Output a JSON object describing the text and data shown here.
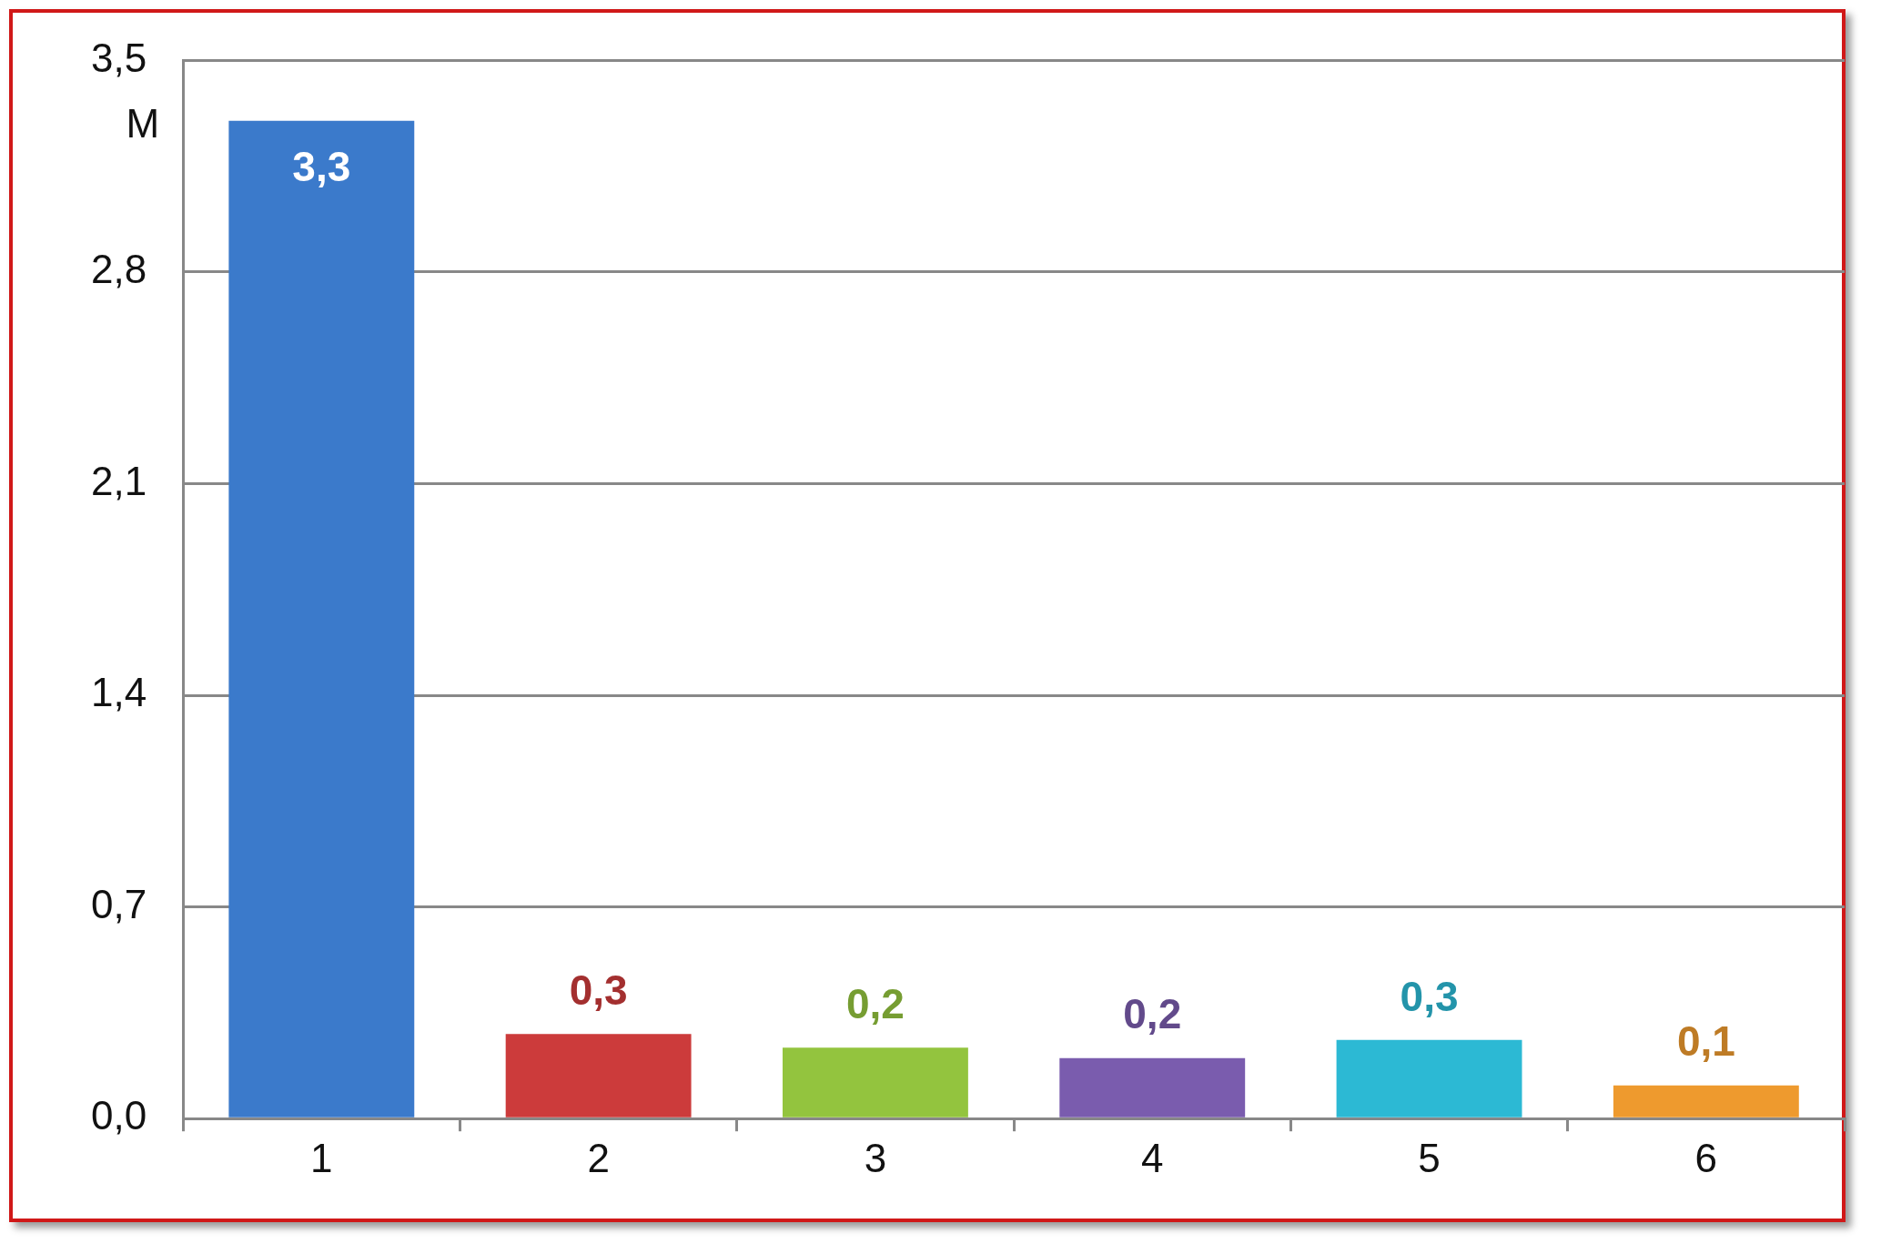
{
  "chart_data": {
    "type": "bar",
    "ylabel": "M",
    "categories": [
      "1",
      "2",
      "3",
      "4",
      "5",
      "6"
    ],
    "values": [
      3.3,
      0.28,
      0.235,
      0.2,
      0.26,
      0.11
    ],
    "value_labels": [
      "3,3",
      "0,3",
      "0,2",
      "0,2",
      "0,3",
      "0,1"
    ],
    "colors": [
      "#3b7acb",
      "#cc3b3b",
      "#93c43e",
      "#7a5cae",
      "#2cb9d4",
      "#ee9a2e"
    ],
    "ylim": [
      0,
      3.5
    ],
    "yticks": [
      {
        "value": 0,
        "label": "0,0"
      },
      {
        "value": 0.7,
        "label": "0,7"
      },
      {
        "value": 1.4,
        "label": "1,4"
      },
      {
        "value": 2.1,
        "label": "2,1"
      },
      {
        "value": 2.8,
        "label": "2,8"
      },
      {
        "value": 3.5,
        "label": "3,5"
      }
    ],
    "grid": "y"
  }
}
